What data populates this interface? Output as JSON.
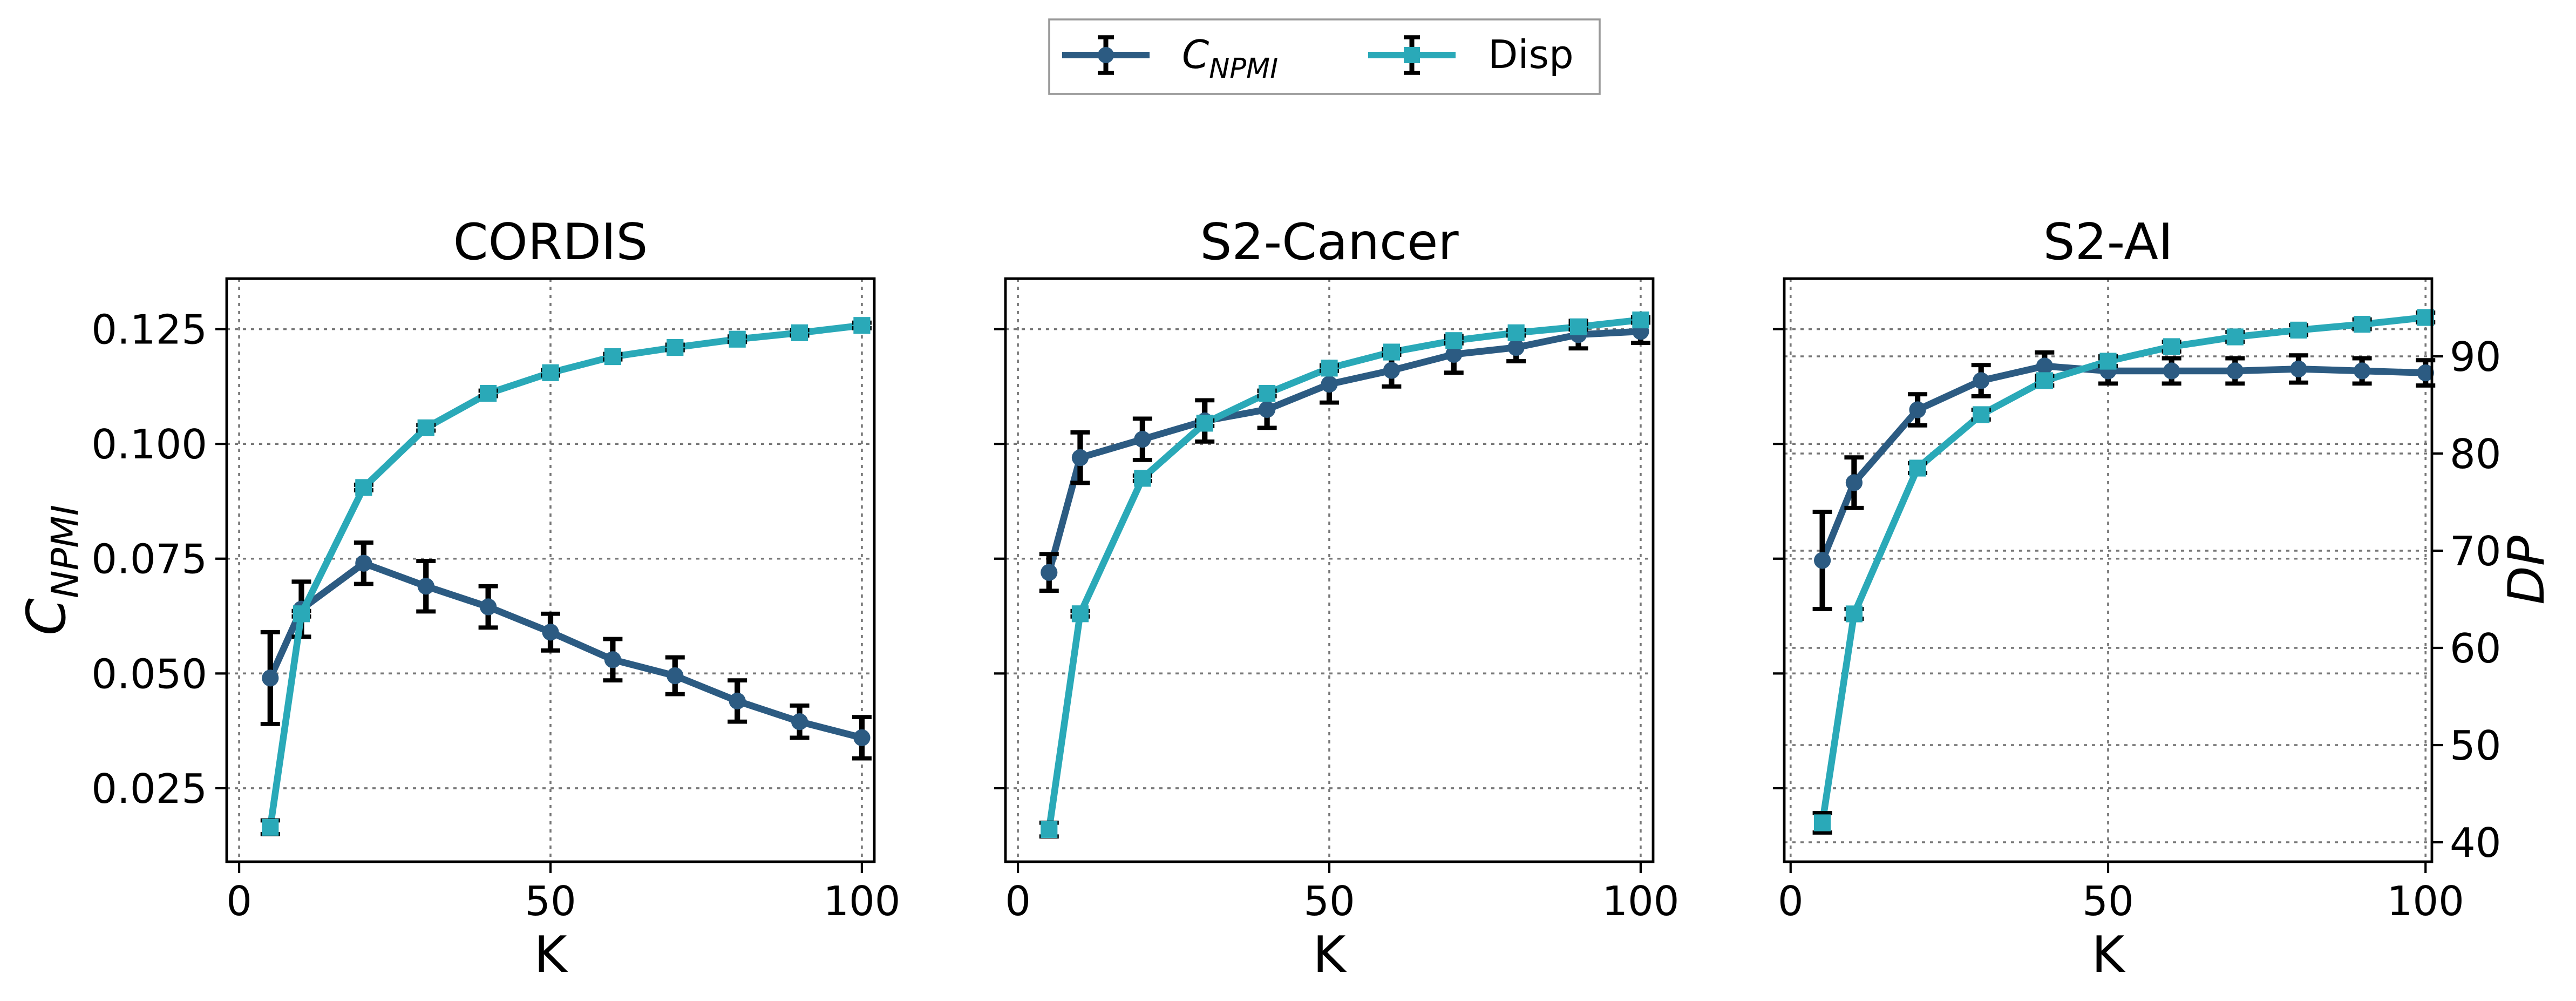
{
  "legend": {
    "entries": [
      {
        "label": "C",
        "sub": "NPMI",
        "color": "#2c5b82",
        "marker": "circle"
      },
      {
        "label": "Disp",
        "sub": "",
        "color": "#2aa9b8",
        "marker": "square"
      }
    ]
  },
  "chart_data": [
    {
      "type": "line",
      "title": "CORDIS",
      "xlabel": "K",
      "ylabel": "C",
      "ylabel_sub": "NPMI",
      "y2label": "",
      "xlim": [
        -2,
        102
      ],
      "ylim": [
        0.009,
        0.136
      ],
      "y2lim": [
        38.0,
        98.0
      ],
      "xticks": [
        0,
        50,
        100
      ],
      "yticks": [
        0.025,
        0.05,
        0.075,
        0.1,
        0.125
      ],
      "ytick_labels": [
        "0.025",
        "0.050",
        "0.075",
        "0.100",
        "0.125"
      ],
      "show_ytick_labels": true,
      "y2ticks": [],
      "y2tick_labels": [],
      "grid": true,
      "x": [
        5,
        10,
        20,
        30,
        40,
        50,
        60,
        70,
        80,
        90,
        100
      ],
      "series": [
        {
          "name": "C_NPMI",
          "axis": "left",
          "color": "#2c5b82",
          "marker": "circle",
          "values": [
            0.049,
            0.064,
            0.074,
            0.069,
            0.0645,
            0.059,
            0.053,
            0.0495,
            0.044,
            0.0395,
            0.036
          ],
          "errors": [
            0.01,
            0.006,
            0.0045,
            0.0055,
            0.0045,
            0.004,
            0.0045,
            0.004,
            0.0045,
            0.0035,
            0.0045
          ]
        },
        {
          "name": "Disp",
          "axis": "left",
          "color": "#2aa9b8",
          "marker": "square",
          "values": [
            0.0165,
            0.063,
            0.0905,
            0.1035,
            0.111,
            0.1155,
            0.119,
            0.121,
            0.1228,
            0.1242,
            0.1258
          ],
          "errors": [
            0.0015,
            0.0006,
            0.0006,
            0.0006,
            0.0006,
            0.0006,
            0.0006,
            0.0006,
            0.0006,
            0.0006,
            0.0006
          ]
        }
      ]
    },
    {
      "type": "line",
      "title": "S2-Cancer",
      "xlabel": "K",
      "ylabel": "",
      "ylabel_sub": "",
      "y2label": "",
      "xlim": [
        -2,
        102
      ],
      "ylim": [
        0.009,
        0.136
      ],
      "y2lim": [
        38.0,
        98.0
      ],
      "xticks": [
        0,
        50,
        100
      ],
      "yticks": [
        0.025,
        0.05,
        0.075,
        0.1,
        0.125
      ],
      "ytick_labels": [],
      "show_ytick_labels": false,
      "y2ticks": [],
      "y2tick_labels": [],
      "grid": true,
      "x": [
        5,
        10,
        20,
        30,
        40,
        50,
        60,
        70,
        80,
        90,
        100
      ],
      "series": [
        {
          "name": "C_NPMI",
          "axis": "left",
          "color": "#2c5b82",
          "marker": "circle",
          "values": [
            0.072,
            0.097,
            0.101,
            0.105,
            0.1075,
            0.113,
            0.116,
            0.1195,
            0.121,
            0.1238,
            0.1245
          ],
          "errors": [
            0.004,
            0.0055,
            0.0045,
            0.0045,
            0.004,
            0.004,
            0.0035,
            0.004,
            0.003,
            0.003,
            0.0025
          ]
        },
        {
          "name": "Disp",
          "axis": "left",
          "color": "#2aa9b8",
          "marker": "square",
          "values": [
            0.016,
            0.063,
            0.0925,
            0.1045,
            0.111,
            0.1165,
            0.12,
            0.1225,
            0.1242,
            0.1255,
            0.127
          ],
          "errors": [
            0.0015,
            0.0006,
            0.0006,
            0.0006,
            0.0006,
            0.0006,
            0.0006,
            0.0006,
            0.0006,
            0.0006,
            0.0006
          ]
        }
      ]
    },
    {
      "type": "line",
      "title": "S2-AI",
      "xlabel": "K",
      "ylabel": "",
      "ylabel_sub": "",
      "y2label": "DP",
      "xlim": [
        -1,
        101
      ],
      "ylim": [
        0.009,
        0.136
      ],
      "y2lim": [
        38.0,
        98.0
      ],
      "xticks": [
        0,
        50,
        100
      ],
      "yticks": [
        0.025,
        0.05,
        0.075,
        0.1,
        0.125
      ],
      "ytick_labels": [],
      "show_ytick_labels": false,
      "y2ticks": [
        40,
        50,
        60,
        70,
        80,
        90
      ],
      "y2tick_labels": [
        "40",
        "50",
        "60",
        "70",
        "80",
        "90"
      ],
      "grid": true,
      "x": [
        5,
        10,
        20,
        30,
        40,
        50,
        60,
        70,
        80,
        90,
        100
      ],
      "series": [
        {
          "name": "C_NPMI",
          "axis": "right",
          "color": "#2c5b82",
          "marker": "circle",
          "values": [
            69.0,
            77.0,
            84.5,
            87.5,
            89.0,
            88.5,
            88.5,
            88.5,
            88.7,
            88.5,
            88.3
          ],
          "errors": [
            5.0,
            2.6,
            1.6,
            1.6,
            1.4,
            1.3,
            1.3,
            1.3,
            1.4,
            1.3,
            1.3
          ]
        },
        {
          "name": "Disp",
          "axis": "right",
          "color": "#2aa9b8",
          "marker": "square",
          "values": [
            42.0,
            63.5,
            78.5,
            84.0,
            87.5,
            89.5,
            91.0,
            92.0,
            92.7,
            93.3,
            94.0
          ],
          "errors": [
            1.0,
            0.5,
            0.5,
            0.5,
            0.5,
            0.5,
            0.5,
            0.5,
            0.5,
            0.5,
            0.5
          ]
        }
      ]
    }
  ]
}
